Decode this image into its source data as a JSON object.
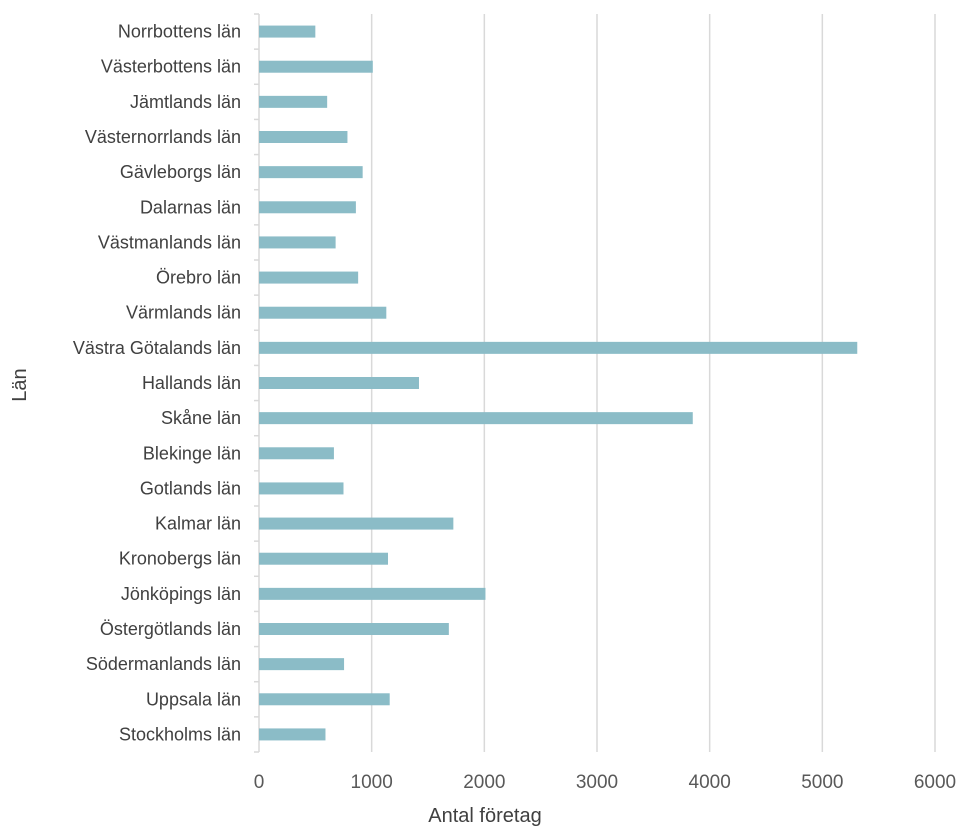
{
  "chart_data": {
    "type": "bar",
    "orientation": "horizontal",
    "categories": [
      "Norrbottens län",
      "Västerbottens län",
      "Jämtlands län",
      "Västernorrlands län",
      "Gävleborgs län",
      "Dalarnas län",
      "Västmanlands län",
      "Örebro län",
      "Värmlands län",
      "Västra Götalands län",
      "Hallands län",
      "Skåne län",
      "Blekinge län",
      "Gotlands län",
      "Kalmar län",
      "Kronobergs län",
      "Jönköpings län",
      "Östergötlands län",
      "Södermanlands län",
      "Uppsala län",
      "Stockholms län"
    ],
    "values": [
      500,
      1010,
      605,
      785,
      920,
      860,
      680,
      880,
      1130,
      5310,
      1420,
      3850,
      665,
      750,
      1725,
      1145,
      2010,
      1685,
      755,
      1160,
      590
    ],
    "xlabel": "Antal företag",
    "ylabel": "Län",
    "xlim": [
      0,
      6000
    ],
    "xticks": [
      0,
      1000,
      2000,
      3000,
      4000,
      5000,
      6000
    ],
    "grid": true,
    "legend": "none",
    "bar_color": "#8bbcc7",
    "grid_color": "#d9d9d9"
  }
}
